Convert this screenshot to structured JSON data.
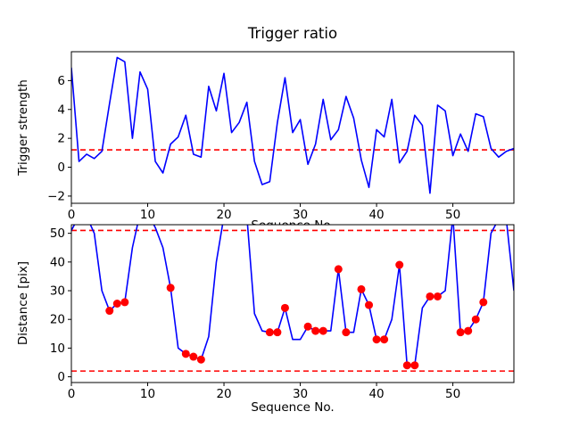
{
  "figure": {
    "background_color": "#ffffff",
    "line_color": "#0000ff",
    "threshold_color": "#ff0000",
    "marker_color": "#ff0000",
    "axis_color": "#000000"
  },
  "chart_data": [
    {
      "type": "line",
      "title": "Trigger ratio",
      "xlabel": "Sequence No.",
      "ylabel": "Trigger strength",
      "x_is_index": true,
      "xlim": [
        0,
        58
      ],
      "ylim": [
        -2.5,
        8.0
      ],
      "xticks": [
        0,
        10,
        20,
        30,
        40,
        50
      ],
      "yticks": [
        -2,
        0,
        2,
        4,
        6
      ],
      "grid": false,
      "legend": "none",
      "threshold_lines": [
        {
          "y": 1.2,
          "color": "#ff0000",
          "style": "dashed"
        }
      ],
      "series": [
        {
          "name": "trigger strength",
          "color": "#0000ff",
          "values": [
            6.9,
            0.4,
            0.9,
            0.6,
            1.1,
            4.4,
            7.6,
            7.3,
            2.0,
            6.6,
            5.4,
            0.4,
            -0.4,
            1.6,
            2.1,
            3.6,
            0.9,
            0.7,
            5.6,
            3.9,
            6.5,
            2.4,
            3.1,
            4.5,
            0.4,
            -1.2,
            -1.0,
            3.1,
            6.2,
            2.4,
            3.3,
            0.2,
            1.6,
            4.7,
            1.9,
            2.6,
            4.9,
            3.4,
            0.5,
            -1.4,
            2.6,
            2.1,
            4.7,
            0.3,
            1.1,
            3.6,
            2.9,
            -1.8,
            4.3,
            3.9,
            0.8,
            2.3,
            1.1,
            3.7,
            3.5,
            1.3,
            0.7,
            1.1,
            1.3
          ]
        }
      ]
    },
    {
      "type": "line",
      "title": "",
      "xlabel": "Sequence No.",
      "ylabel": "Distance [pix]",
      "x_is_index": true,
      "xlim": [
        0,
        58
      ],
      "ylim": [
        -2,
        53
      ],
      "xticks": [
        0,
        10,
        20,
        30,
        40,
        50
      ],
      "yticks": [
        0,
        10,
        20,
        30,
        40,
        50
      ],
      "grid": false,
      "legend": "none",
      "threshold_lines": [
        {
          "y": 51,
          "color": "#ff0000",
          "style": "dashed"
        },
        {
          "y": 2,
          "color": "#ff0000",
          "style": "dashed"
        }
      ],
      "series": [
        {
          "name": "distance",
          "color": "#0000ff",
          "values": [
            51,
            56,
            56,
            50,
            30,
            23,
            25.5,
            26,
            45,
            57,
            57,
            52,
            45,
            31,
            10,
            8,
            7,
            6,
            14,
            40,
            56,
            58,
            58,
            56,
            22,
            16,
            15.5,
            15.5,
            24,
            13,
            13,
            17.5,
            16,
            16,
            16,
            37.5,
            15.5,
            15.5,
            30.5,
            25,
            13,
            13,
            20,
            39,
            4,
            4,
            24,
            28,
            28,
            30,
            56,
            15.5,
            16,
            20,
            26,
            50,
            55,
            55,
            30
          ]
        }
      ],
      "markers": {
        "shape": "circle",
        "color": "#ff0000",
        "indices": [
          5,
          6,
          7,
          13,
          15,
          16,
          17,
          26,
          27,
          28,
          31,
          32,
          33,
          35,
          36,
          38,
          39,
          40,
          41,
          43,
          44,
          45,
          47,
          48,
          51,
          52,
          53,
          54
        ]
      }
    }
  ]
}
